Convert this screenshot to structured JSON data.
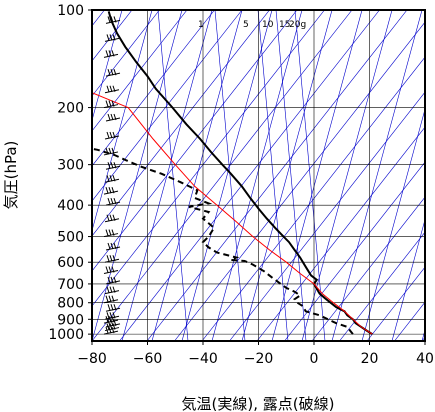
{
  "chart_data": {
    "type": "line",
    "title": "",
    "xlabel": "気温(実線), 露点(破線)",
    "ylabel": "気圧(hPa)",
    "x_ticks": [
      -80,
      -60,
      -40,
      -20,
      0,
      20,
      40
    ],
    "x_tick_labels": [
      "−80",
      "−60",
      "−40",
      "−20",
      "0",
      "20",
      "40"
    ],
    "y_ticks": [
      100,
      200,
      300,
      400,
      500,
      600,
      700,
      800,
      900,
      1000
    ],
    "y_tick_labels": [
      "100",
      "200",
      "300",
      "400",
      "500",
      "600",
      "700",
      "800",
      "900",
      "1000"
    ],
    "xlim": [
      -80,
      40
    ],
    "ylim": [
      1050,
      100
    ],
    "y_scale": "log",
    "mixing_ratio_labels": [
      "1",
      "5",
      "10",
      "15",
      "20g"
    ],
    "colors": {
      "temperature": "#000000",
      "dewpoint": "#000000",
      "parcel": "#ff0000",
      "isotherm_background": "#0000cc",
      "grid": "#000000"
    },
    "series": [
      {
        "style": "solid",
        "points": [
          [
            21,
            1000
          ],
          [
            19,
            975
          ],
          [
            17,
            950
          ],
          [
            15,
            925
          ],
          [
            14,
            900
          ],
          [
            12,
            875
          ],
          [
            11,
            850
          ],
          [
            8,
            825
          ],
          [
            6,
            800
          ],
          [
            4,
            775
          ],
          [
            2,
            750
          ],
          [
            1,
            725
          ],
          [
            0,
            700
          ],
          [
            1,
            680
          ],
          [
            -1,
            660
          ],
          [
            -2,
            640
          ],
          [
            -3,
            620
          ],
          [
            -4,
            600
          ],
          [
            -5,
            580
          ],
          [
            -7,
            550
          ],
          [
            -9,
            520
          ],
          [
            -11,
            500
          ],
          [
            -14,
            470
          ],
          [
            -17,
            440
          ],
          [
            -20,
            410
          ],
          [
            -23,
            380
          ],
          [
            -26,
            350
          ],
          [
            -30,
            320
          ],
          [
            -33,
            300
          ],
          [
            -37,
            275
          ],
          [
            -41,
            250
          ],
          [
            -46,
            225
          ],
          [
            -51,
            200
          ],
          [
            -57,
            175
          ],
          [
            -60,
            160
          ],
          [
            -64,
            145
          ],
          [
            -68,
            130
          ],
          [
            -71,
            118
          ],
          [
            -73,
            108
          ],
          [
            -74,
            101
          ]
        ]
      },
      {
        "style": "dashed",
        "points": [
          [
            14,
            1000
          ],
          [
            13,
            975
          ],
          [
            12,
            950
          ],
          [
            8,
            925
          ],
          [
            5,
            900
          ],
          [
            2,
            875
          ],
          [
            -3,
            850
          ],
          [
            -4,
            820
          ],
          [
            -6,
            800
          ],
          [
            -7,
            780
          ],
          [
            -5,
            760
          ],
          [
            -7,
            740
          ],
          [
            -10,
            720
          ],
          [
            -12,
            700
          ],
          [
            -15,
            670
          ],
          [
            -18,
            640
          ],
          [
            -22,
            610
          ],
          [
            -25,
            595
          ],
          [
            -30,
            590
          ],
          [
            -28,
            580
          ],
          [
            -35,
            560
          ],
          [
            -38,
            540
          ],
          [
            -40,
            520
          ],
          [
            -38,
            500
          ],
          [
            -36,
            470
          ],
          [
            -40,
            440
          ],
          [
            -38,
            420
          ],
          [
            -45,
            405
          ],
          [
            -38,
            395
          ],
          [
            -43,
            380
          ],
          [
            -42,
            360
          ],
          [
            -48,
            340
          ],
          [
            -55,
            320
          ],
          [
            -62,
            305
          ],
          [
            -68,
            290
          ],
          [
            -72,
            280
          ],
          [
            -78,
            270
          ],
          [
            -80,
            268
          ]
        ]
      },
      {
        "style": "solid",
        "points": [
          [
            21,
            1000
          ],
          [
            17,
            950
          ],
          [
            14,
            900
          ],
          [
            11,
            850
          ],
          [
            7,
            800
          ],
          [
            3,
            750
          ],
          [
            0,
            700
          ],
          [
            -5,
            650
          ],
          [
            -10,
            600
          ],
          [
            -16,
            550
          ],
          [
            -22,
            500
          ],
          [
            -28,
            450
          ],
          [
            -35,
            400
          ],
          [
            -43,
            350
          ],
          [
            -50,
            300
          ],
          [
            -58,
            250
          ],
          [
            -67,
            200
          ],
          [
            -80,
            180
          ]
        ]
      }
    ]
  }
}
